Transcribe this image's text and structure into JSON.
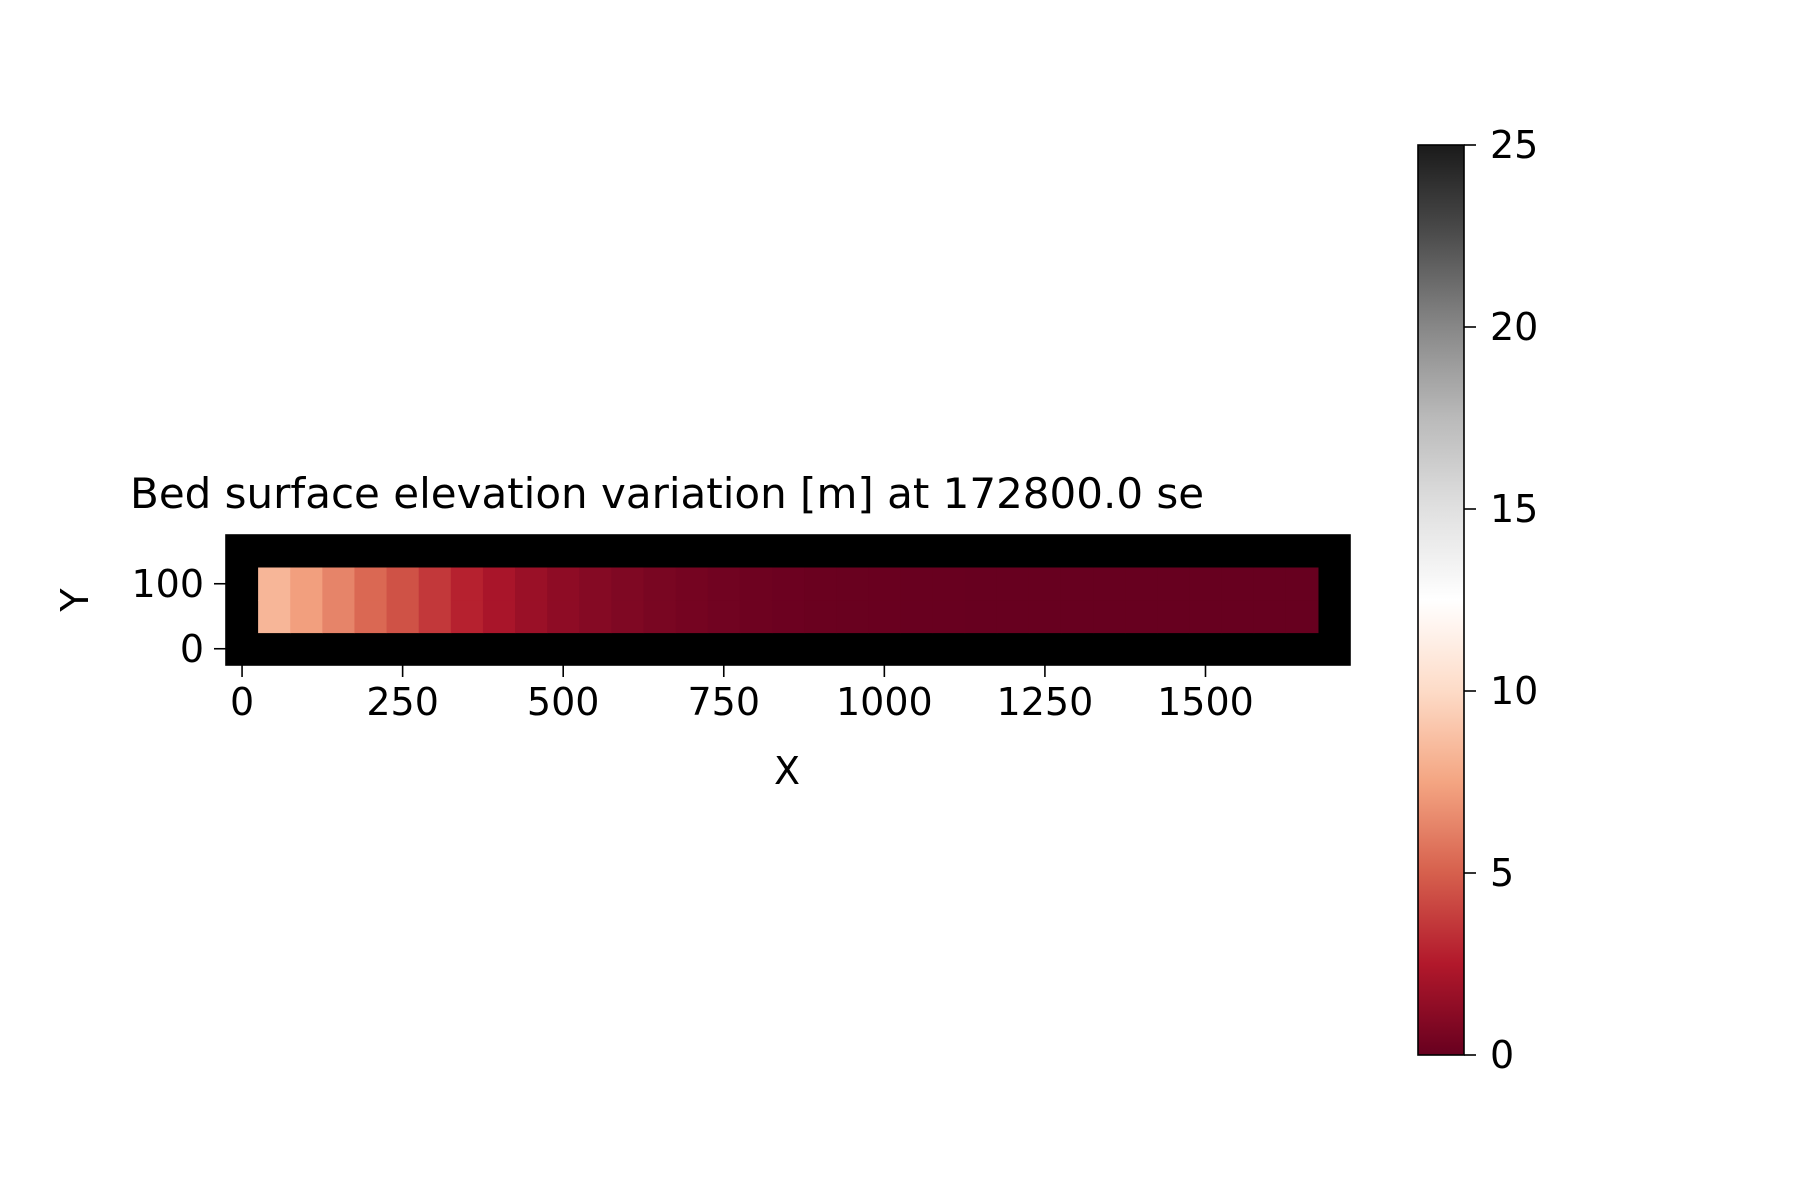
{
  "chart_data": {
    "type": "heatmap",
    "title": "Bed surface elevation variation [m] at 172800.0 se",
    "xlabel": "X",
    "ylabel": "Y",
    "x_ticks": [
      "0",
      "250",
      "500",
      "750",
      "1000",
      "1250",
      "1500"
    ],
    "y_ticks": [
      "0",
      "100"
    ],
    "xlim": [
      -25,
      1725
    ],
    "ylim": [
      -25,
      175
    ],
    "grid": false,
    "colormap": "RdGy_r",
    "colorbar": {
      "min": 0,
      "max": 25,
      "ticks": [
        "0",
        "5",
        "10",
        "15",
        "20",
        "25"
      ]
    },
    "cell_size": 50,
    "x_centers": [
      50,
      100,
      150,
      200,
      250,
      300,
      350,
      400,
      450,
      500,
      550,
      600,
      650,
      700,
      750,
      800,
      850,
      900,
      950,
      1000,
      1050,
      1100,
      1150,
      1200,
      1250,
      1300,
      1350,
      1400,
      1450,
      1500,
      1550,
      1600,
      1650
    ],
    "y_centers": [
      50,
      100
    ],
    "values": [
      8.3,
      7.3,
      6.3,
      5.3,
      4.5,
      3.6,
      2.8,
      2.2,
      1.7,
      1.3,
      1.0,
      0.8,
      0.6,
      0.45,
      0.32,
      0.22,
      0.15,
      0.1,
      0.07,
      0.05,
      0.03,
      0.02,
      0.015,
      0.01,
      0.01,
      0.005,
      0.005,
      0,
      0,
      0,
      0,
      0,
      0
    ],
    "boundary_color": "#000000"
  }
}
